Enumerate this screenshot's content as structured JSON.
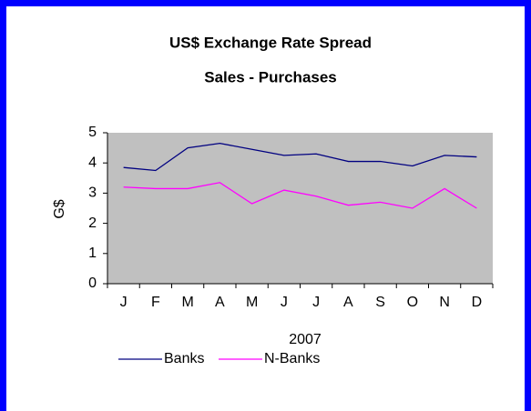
{
  "chart_data": {
    "type": "line",
    "title": "US$ Exchange Rate Spread",
    "subtitle": "Sales - Purchases",
    "x_label": "2007",
    "y_label": "G$",
    "categories": [
      "J",
      "F",
      "M",
      "A",
      "M",
      "J",
      "J",
      "A",
      "S",
      "O",
      "N",
      "D"
    ],
    "series": [
      {
        "name": "Banks",
        "color": "#000080",
        "values": [
          3.85,
          3.75,
          4.5,
          4.65,
          4.45,
          4.25,
          4.3,
          4.05,
          4.05,
          3.9,
          4.25,
          4.2
        ]
      },
      {
        "name": "N-Banks",
        "color": "#ff00ff",
        "values": [
          3.2,
          3.15,
          3.15,
          3.35,
          2.65,
          3.1,
          2.9,
          2.6,
          2.7,
          2.5,
          3.15,
          2.5
        ]
      }
    ],
    "ylim": [
      0,
      5
    ],
    "yticks": [
      0,
      1,
      2,
      3,
      4,
      5
    ],
    "plot_background": "#c0c0c0",
    "legend": "bottom"
  }
}
